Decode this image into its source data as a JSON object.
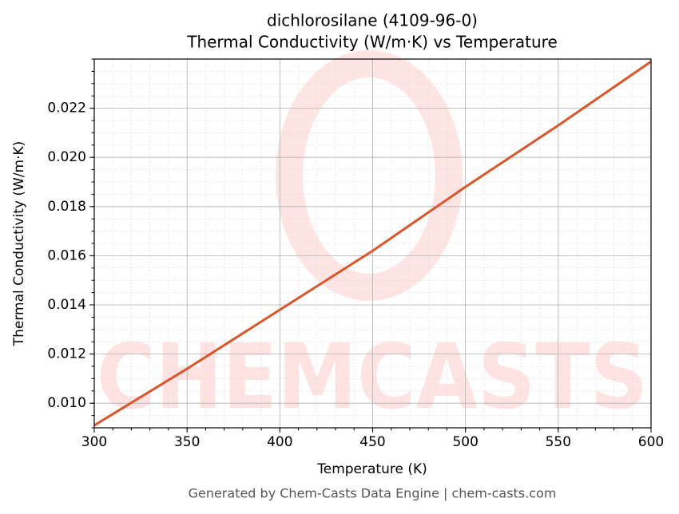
{
  "chart_data": {
    "type": "line",
    "title": "dichlorosilane (4109-96-0)",
    "subtitle": "Thermal Conductivity (W/m·K) vs Temperature",
    "x_label": "Temperature (K)",
    "y_label": "Thermal Conductivity (W/m·K)",
    "footer": "Generated by Chem-Casts Data Engine | chem-casts.com",
    "watermark": "CHEMCASTS",
    "x": [
      300,
      350,
      400,
      450,
      500,
      550,
      600
    ],
    "series": [
      {
        "name": "Thermal Conductivity",
        "color": "#d9572b",
        "values": [
          0.0091,
          0.0114,
          0.0138,
          0.0162,
          0.0188,
          0.0213,
          0.0239
        ]
      }
    ],
    "xlim": [
      300,
      600
    ],
    "ylim": [
      0.009,
      0.024
    ],
    "xticks": [
      300,
      350,
      400,
      450,
      500,
      550,
      600
    ],
    "yticks": [
      {
        "value": 0.01,
        "label": "0.010"
      },
      {
        "value": 0.012,
        "label": "0.012"
      },
      {
        "value": 0.014,
        "label": "0.014"
      },
      {
        "value": 0.016,
        "label": "0.016"
      },
      {
        "value": 0.018,
        "label": "0.018"
      },
      {
        "value": 0.02,
        "label": "0.020"
      },
      {
        "value": 0.022,
        "label": "0.022"
      }
    ],
    "grid": true
  }
}
